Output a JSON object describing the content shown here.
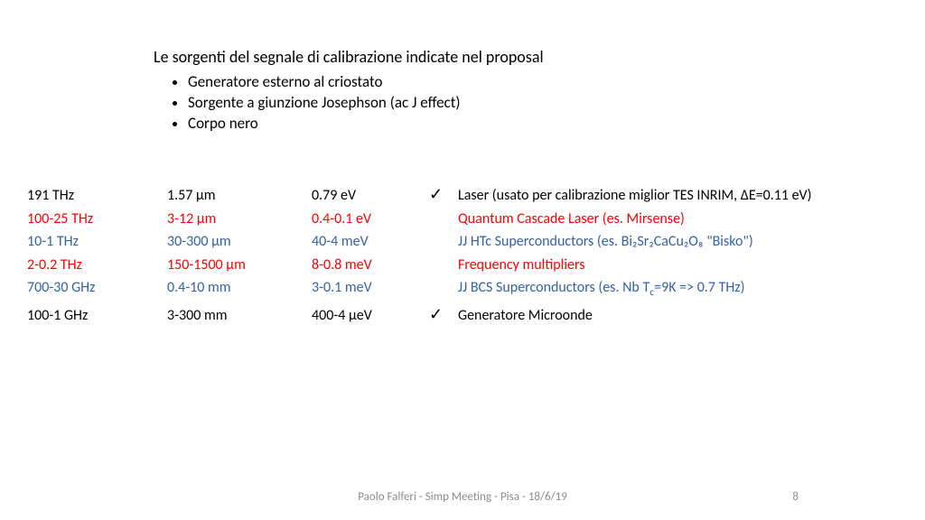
{
  "title": "Le sorgenti del segnale di calibrazione indicate nel proposal",
  "bullets": [
    "Generatore esterno al criostato",
    "Sorgente a giunzione Josephson (ac J effect)",
    "Corpo nero"
  ],
  "rows": [
    {
      "freq": "191 THz",
      "wl": "1.57 μm",
      "e": "0.79 eV",
      "check": true,
      "desc": "Laser (usato per calibrazione miglior TES INRIM, ΔE=0.11 eV)",
      "color": "black"
    },
    {
      "freq": "100-25 THz",
      "wl": "3-12 μm",
      "e": "0.4-0.1 eV",
      "check": false,
      "desc": "Quantum Cascade Laser (es. Mirsense)",
      "color": "red"
    },
    {
      "freq": "10-1 THz",
      "wl": "30-300 μm",
      "e": "40-4 meV",
      "check": false,
      "desc": "JJ HTc Superconductors (es. Bi₂Sr₂CaCu₂O₈ \"Bisko\")",
      "color": "blue"
    },
    {
      "freq": "2-0.2 THz",
      "wl": "150-1500 μm",
      "e": "8-0.8 meV",
      "check": false,
      "desc": "Frequency multipliers",
      "color": "red"
    },
    {
      "freq": "700-30 GHz",
      "wl": "0.4-10 mm",
      "e": "3-0.1 meV",
      "check": false,
      "desc_html": "JJ BCS Superconductors (es. Nb T<span class=\"sub\">c</span>=9K => 0.7 THz)",
      "color": "blue"
    },
    {
      "freq": "100-1 GHz",
      "wl": "3-300 mm",
      "e": "400-4 μeV",
      "check": true,
      "desc": "Generatore Microonde",
      "color": "black"
    }
  ],
  "footer": "Paolo Falferi - Simp Meeting - Pisa - 18/6/19",
  "page": "8",
  "colors": {
    "black": "#000000",
    "red": "#ff0000",
    "blue": "#3561a5"
  }
}
